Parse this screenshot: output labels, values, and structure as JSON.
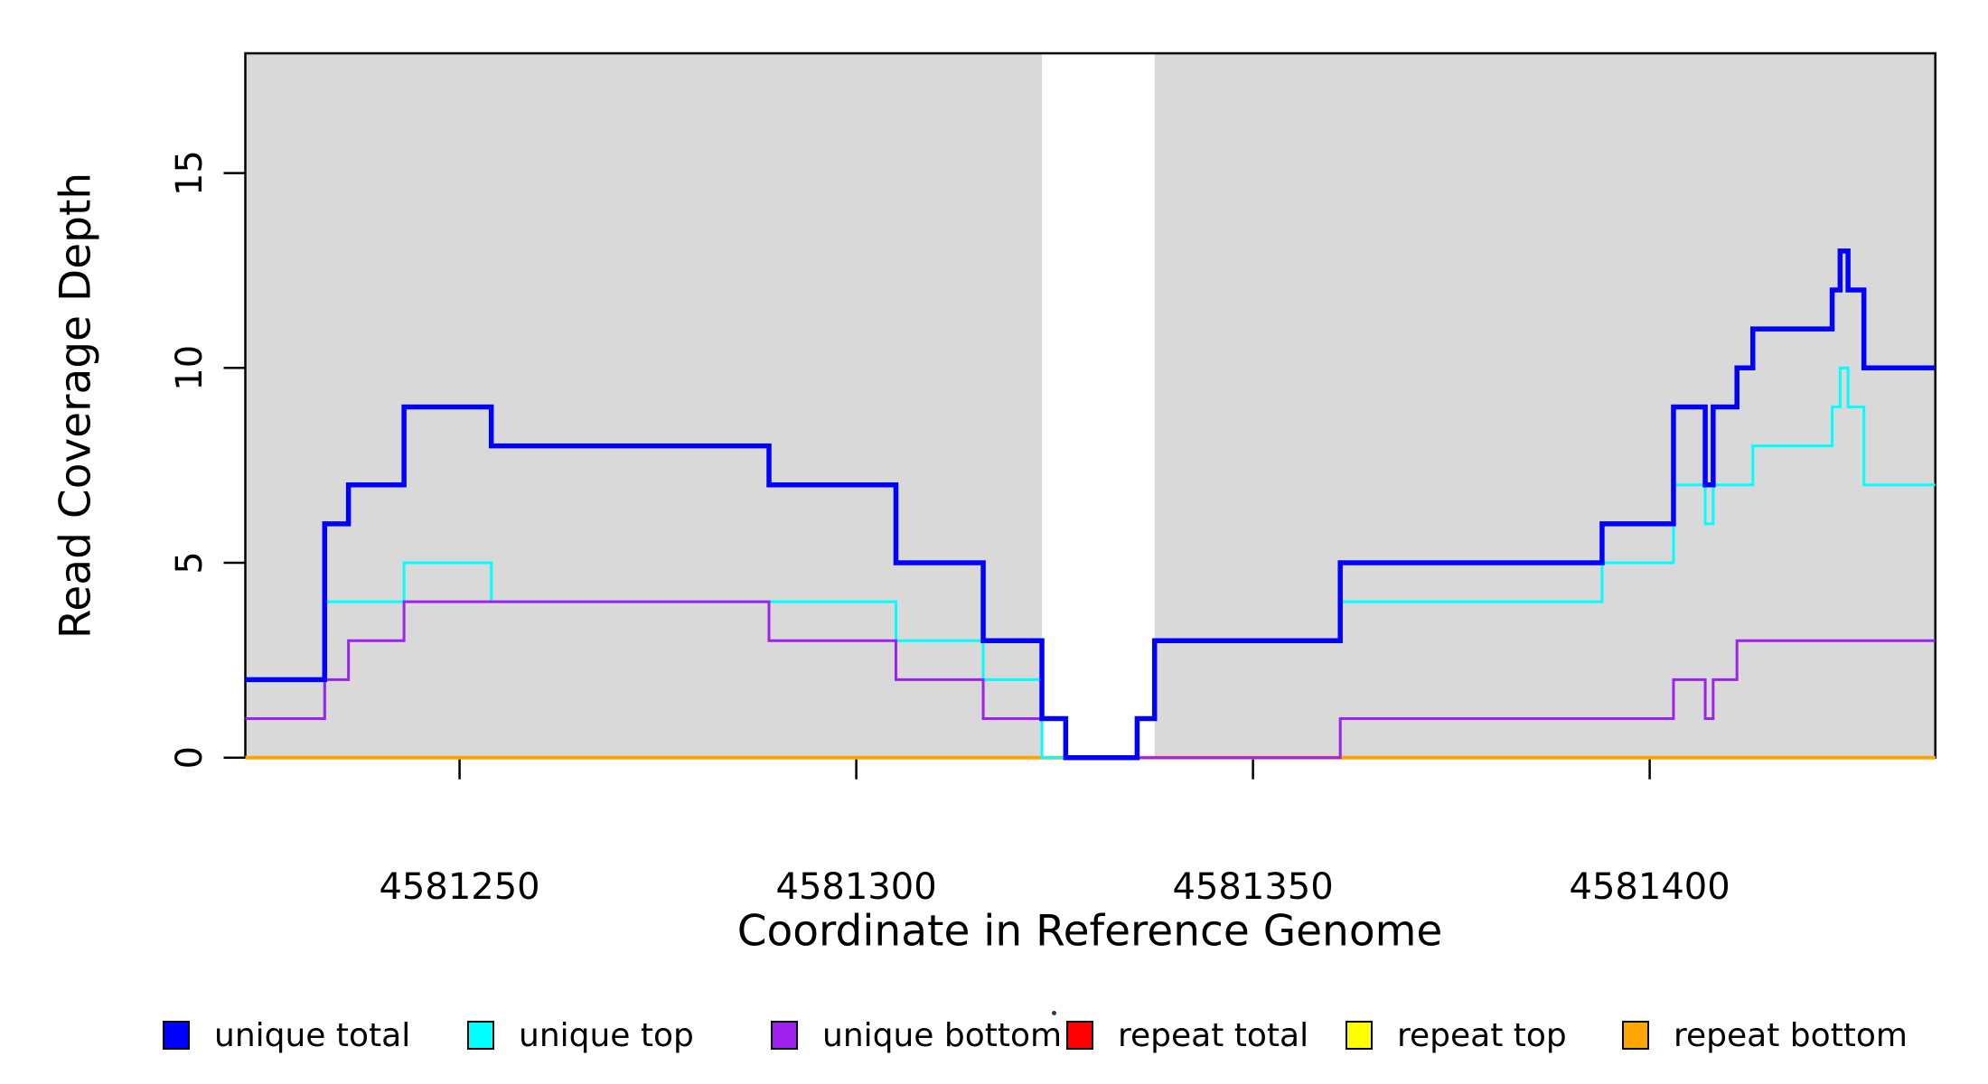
{
  "chart_data": {
    "type": "line",
    "subtype": "step-coverage",
    "title": "",
    "xlabel": "Coordinate in Reference Genome",
    "ylabel": "Read Coverage Depth",
    "xlim": [
      4581223,
      4581436
    ],
    "ylim": [
      0,
      18.1
    ],
    "x_ticks": [
      "4581250",
      "4581300",
      "4581350",
      "4581400"
    ],
    "x_tick_values": [
      4581250,
      4581300,
      4581350,
      4581400
    ],
    "y_ticks": [
      "0",
      "5",
      "10",
      "15"
    ],
    "y_tick_values": [
      0,
      5,
      10,
      15
    ],
    "grid": false,
    "legend_position": "bottom",
    "figure_background": "#FFFFFF",
    "background_regions": [
      {
        "x0": 4581223,
        "x1": 4581323.4,
        "color": "#D9D9D9"
      },
      {
        "x0": 4581337.6,
        "x1": 4581436,
        "color": "#D9D9D9"
      }
    ],
    "draw_order": [
      "repeat total",
      "repeat top",
      "repeat bottom",
      "unique top",
      "unique bottom",
      "unique total"
    ],
    "series": [
      {
        "name": "unique total",
        "color": "#0000FF",
        "width": 5.5,
        "points": [
          [
            4581223,
            2
          ],
          [
            4581233,
            6
          ],
          [
            4581236,
            7
          ],
          [
            4581243,
            9
          ],
          [
            4581254,
            8
          ],
          [
            4581289,
            7
          ],
          [
            4581305,
            5
          ],
          [
            4581316,
            3
          ],
          [
            4581323.4,
            1
          ],
          [
            4581326.4,
            0
          ],
          [
            4581335.4,
            1
          ],
          [
            4581337.6,
            3
          ],
          [
            4581361,
            5
          ],
          [
            4581394,
            6
          ],
          [
            4581403,
            9
          ],
          [
            4581407,
            7
          ],
          [
            4581408,
            9
          ],
          [
            4581411,
            10
          ],
          [
            4581413,
            11
          ],
          [
            4581423,
            12
          ],
          [
            4581424,
            13
          ],
          [
            4581425,
            12
          ],
          [
            4581427,
            10
          ],
          [
            4581436,
            10
          ]
        ]
      },
      {
        "name": "unique top",
        "color": "#00FFFF",
        "width": 3,
        "points": [
          [
            4581223,
            1
          ],
          [
            4581233,
            4
          ],
          [
            4581243,
            5
          ],
          [
            4581254,
            4
          ],
          [
            4581305,
            3
          ],
          [
            4581316,
            2
          ],
          [
            4581323.4,
            0
          ],
          [
            4581335.4,
            1
          ],
          [
            4581337.6,
            3
          ],
          [
            4581361,
            4
          ],
          [
            4581394,
            5
          ],
          [
            4581403,
            7
          ],
          [
            4581407,
            6
          ],
          [
            4581408,
            7
          ],
          [
            4581413,
            8
          ],
          [
            4581423,
            9
          ],
          [
            4581424,
            10
          ],
          [
            4581425,
            9
          ],
          [
            4581427,
            7
          ],
          [
            4581436,
            7
          ]
        ]
      },
      {
        "name": "unique bottom",
        "color": "#A020F0",
        "width": 3,
        "points": [
          [
            4581223,
            1
          ],
          [
            4581233,
            2
          ],
          [
            4581236,
            3
          ],
          [
            4581243,
            4
          ],
          [
            4581289,
            3
          ],
          [
            4581305,
            2
          ],
          [
            4581316,
            1
          ],
          [
            4581326.4,
            0
          ],
          [
            4581361,
            1
          ],
          [
            4581403,
            2
          ],
          [
            4581407,
            1
          ],
          [
            4581408,
            2
          ],
          [
            4581411,
            3
          ],
          [
            4581436,
            3
          ]
        ]
      },
      {
        "name": "repeat total",
        "color": "#FF0000",
        "width": 3,
        "points": [
          [
            4581223,
            0
          ],
          [
            4581436,
            0
          ]
        ]
      },
      {
        "name": "repeat top",
        "color": "#FFFF00",
        "width": 3,
        "points": [
          [
            4581223,
            0
          ],
          [
            4581436,
            0
          ]
        ]
      },
      {
        "name": "repeat bottom",
        "color": "#FFA500",
        "width": 4,
        "points": [
          [
            4581223,
            0
          ],
          [
            4581436,
            0
          ]
        ]
      }
    ],
    "legend": {
      "items": [
        {
          "label": "unique total",
          "color": "#0000FF"
        },
        {
          "label": "unique top",
          "color": "#00FFFF"
        },
        {
          "label": "unique bottom",
          "color": "#A020F0"
        },
        {
          "label": "repeat total",
          "color": "#FF0000"
        },
        {
          "label": "repeat top",
          "color": "#FFFF00"
        },
        {
          "label": "repeat bottom",
          "color": "#FFA500"
        }
      ]
    }
  }
}
